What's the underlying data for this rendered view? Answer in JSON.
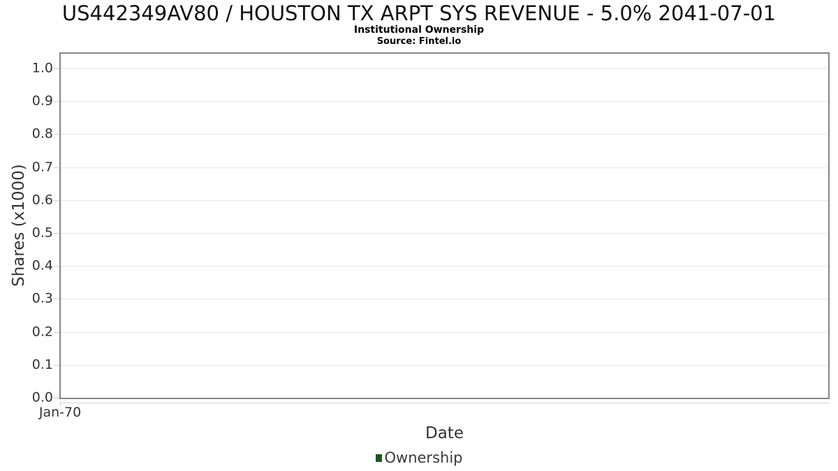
{
  "header": {
    "title": "US442349AV80 / HOUSTON TX ARPT SYS REVENUE - 5.0% 2041-07-01",
    "subtitle": "Institutional Ownership",
    "source": "Source: Fintel.io"
  },
  "chart_data": {
    "type": "line",
    "title": "US442349AV80 / HOUSTON TX ARPT SYS REVENUE - 5.0% 2041-07-01",
    "subtitle": "Institutional Ownership",
    "source": "Source: Fintel.io",
    "xlabel": "Date",
    "ylabel": "Shares (x1000)",
    "x_tick_labels": [
      "Jan-70"
    ],
    "y_ticks": [
      0.0,
      0.1,
      0.2,
      0.3,
      0.4,
      0.5,
      0.6,
      0.7,
      0.8,
      0.9,
      1.0
    ],
    "y_tick_labels": [
      "0.0",
      "0.1",
      "0.2",
      "0.3",
      "0.4",
      "0.5",
      "0.6",
      "0.7",
      "0.8",
      "0.9",
      "1.0"
    ],
    "ylim": [
      0,
      1.049
    ],
    "grid": "horizontal",
    "legend": {
      "position": "bottom",
      "items": [
        {
          "label": "Ownership",
          "color": "#235226"
        }
      ]
    },
    "series": [
      {
        "name": "Ownership",
        "color": "#235226",
        "x": [],
        "values": []
      }
    ]
  },
  "colors": {
    "series_green": "#235226",
    "plot_border": "#868686",
    "gridline": "#e6e6e6",
    "tick": "#cfcfcf",
    "text_dark": "#333333"
  }
}
